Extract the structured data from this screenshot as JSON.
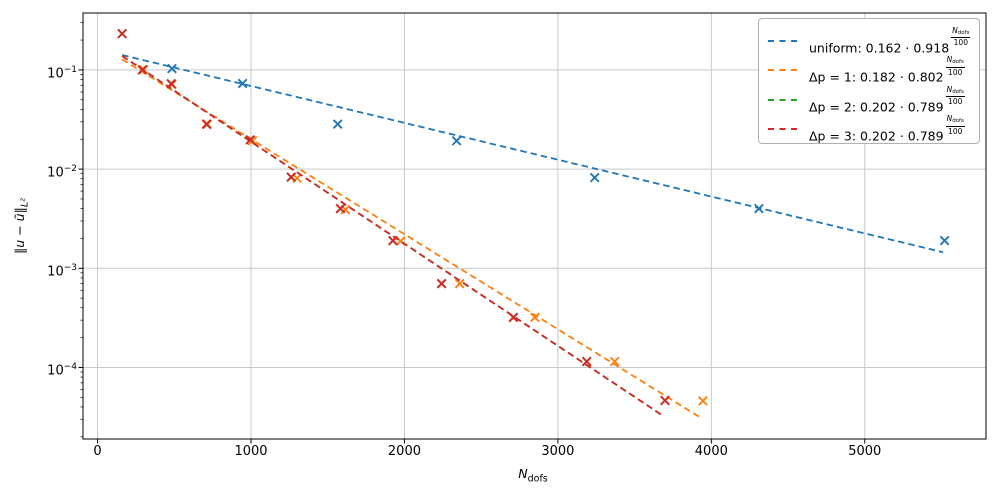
{
  "figure": {
    "background": "#ffffff",
    "grid_color": "#c9c9c9",
    "spine_color": "#000000"
  },
  "chart_data": {
    "type": "scatter",
    "title": "",
    "xlabel": {
      "main": "N",
      "sub": "dofs"
    },
    "ylabel": {
      "text": "‖u − ũ‖",
      "sub": "L²"
    },
    "x_axis": {
      "scale": "linear",
      "lim": [
        -95,
        5790
      ],
      "grid": true,
      "ticks": [
        {
          "value": 0,
          "label": "0"
        },
        {
          "value": 1000,
          "label": "1000"
        },
        {
          "value": 2000,
          "label": "2000"
        },
        {
          "value": 3000,
          "label": "3000"
        },
        {
          "value": 4000,
          "label": "4000"
        },
        {
          "value": 5000,
          "label": "5000"
        }
      ]
    },
    "y_axis": {
      "scale": "log",
      "lim": [
        1.9e-05,
        0.375
      ],
      "grid": true,
      "ticks": [
        {
          "value": 0.1,
          "base": "10",
          "exp": "−1"
        },
        {
          "value": 0.01,
          "base": "10",
          "exp": "−2"
        },
        {
          "value": 0.001,
          "base": "10",
          "exp": "−3"
        },
        {
          "value": 0.0001,
          "base": "10",
          "exp": "−4"
        }
      ]
    },
    "legend_position": "upper right",
    "series": [
      {
        "name": "uniform",
        "color": "#1f77b4",
        "marker": "x",
        "linestyle": "dashed",
        "fit": {
          "coef": 0.162,
          "base": 0.918,
          "per": 100,
          "range": [
            160,
            5510
          ]
        },
        "points": [
          [
            485,
            0.103
          ],
          [
            945,
            0.073
          ],
          [
            1565,
            0.0284
          ],
          [
            2340,
            0.0193
          ],
          [
            3240,
            0.0082
          ],
          [
            4310,
            0.004
          ],
          [
            5520,
            0.0019
          ]
        ],
        "legend_label": {
          "prefix": "uniform: ",
          "coef": "0.162",
          "cdot": " · ",
          "base": "0.918",
          "exp_num_main": "N",
          "exp_num_sub": "dofs",
          "exp_den": "100"
        }
      },
      {
        "name": "Δp = 1",
        "color": "#ff7f0e",
        "marker": "x",
        "linestyle": "dashed",
        "fit": {
          "coef": 0.182,
          "base": 0.802,
          "per": 100,
          "range": [
            160,
            3940
          ]
        },
        "points": [
          [
            300,
            0.101
          ],
          [
            485,
            0.0715
          ],
          [
            715,
            0.0283
          ],
          [
            1010,
            0.0193
          ],
          [
            1300,
            0.0081
          ],
          [
            1615,
            0.0039
          ],
          [
            1975,
            0.00188
          ],
          [
            2360,
            0.0007
          ],
          [
            2850,
            0.00032
          ],
          [
            3370,
            0.000115
          ],
          [
            3945,
            4.6e-05
          ]
        ],
        "legend_label": {
          "prefix": "Δp = 1: ",
          "coef": "0.182",
          "cdot": " · ",
          "base": "0.802",
          "exp_num_main": "N",
          "exp_num_sub": "dofs",
          "exp_den": "100"
        }
      },
      {
        "name": "Δp = 2",
        "color": "#2ca02c",
        "marker": "x",
        "linestyle": "dashed",
        "fit": {
          "coef": 0.202,
          "base": 0.789,
          "per": 100,
          "range": [
            160,
            3690
          ]
        },
        "points": [
          [
            160,
            0.232
          ],
          [
            292,
            0.1
          ],
          [
            480,
            0.0725
          ],
          [
            710,
            0.0284
          ],
          [
            995,
            0.0197
          ],
          [
            1262,
            0.0083
          ],
          [
            1583,
            0.004
          ],
          [
            1925,
            0.0019
          ],
          [
            2242,
            0.0007
          ],
          [
            2710,
            0.00032
          ],
          [
            3188,
            0.000115
          ],
          [
            3698,
            4.65e-05
          ]
        ],
        "legend_label": {
          "prefix": "Δp = 2: ",
          "coef": "0.202",
          "cdot": " · ",
          "base": "0.789",
          "exp_num_main": "N",
          "exp_num_sub": "dofs",
          "exp_den": "100"
        }
      },
      {
        "name": "Δp = 3",
        "color": "#d62728",
        "marker": "x",
        "linestyle": "dashed",
        "fit": {
          "coef": 0.202,
          "base": 0.789,
          "per": 100,
          "range": [
            160,
            3690
          ]
        },
        "points": [
          [
            160,
            0.232
          ],
          [
            292,
            0.1
          ],
          [
            480,
            0.0725
          ],
          [
            710,
            0.0284
          ],
          [
            995,
            0.0197
          ],
          [
            1262,
            0.0083
          ],
          [
            1583,
            0.004
          ],
          [
            1925,
            0.0019
          ],
          [
            2242,
            0.0007
          ],
          [
            2710,
            0.00032
          ],
          [
            3188,
            0.000115
          ],
          [
            3698,
            4.65e-05
          ]
        ],
        "legend_label": {
          "prefix": "Δp = 3: ",
          "coef": "0.202",
          "cdot": " · ",
          "base": "0.789",
          "exp_num_main": "N",
          "exp_num_sub": "dofs",
          "exp_den": "100"
        }
      }
    ]
  }
}
